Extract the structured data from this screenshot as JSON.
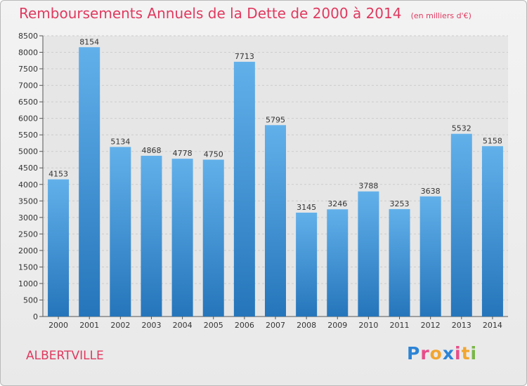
{
  "header": {
    "title": "Remboursements Annuels de la Dette de 2000 à 2014",
    "unit": "(en milliers d'€)"
  },
  "footer": {
    "city": "ALBERTVILLE",
    "brand_letters": [
      "P",
      "r",
      "o",
      "x",
      "i",
      "t",
      "i"
    ],
    "brand_colors": [
      "#2c84d6",
      "#e84d8a",
      "#f2a531",
      "#2c84d6",
      "#e84d8a",
      "#f2a531",
      "#7ab648"
    ]
  },
  "colors": {
    "bar_top": "#62b0ea",
    "bar_bottom": "#2575bb",
    "title": "#e0395f",
    "grid": "#cccccc"
  },
  "chart_data": {
    "type": "bar",
    "categories": [
      "2000",
      "2001",
      "2002",
      "2003",
      "2004",
      "2005",
      "2006",
      "2007",
      "2008",
      "2009",
      "2010",
      "2011",
      "2012",
      "2013",
      "2014"
    ],
    "values": [
      4153,
      8154,
      5134,
      4868,
      4778,
      4750,
      7713,
      5795,
      3145,
      3246,
      3788,
      3253,
      3638,
      5532,
      5158
    ],
    "yticks": [
      0,
      500,
      1000,
      1500,
      2000,
      2500,
      3000,
      3500,
      4000,
      4500,
      5000,
      5500,
      6000,
      6500,
      7000,
      7500,
      8000,
      8500
    ],
    "ylim": [
      0,
      8500
    ],
    "grid": true,
    "title": "Remboursements Annuels de la Dette de 2000 à 2014",
    "xlabel": "",
    "ylabel": ""
  }
}
